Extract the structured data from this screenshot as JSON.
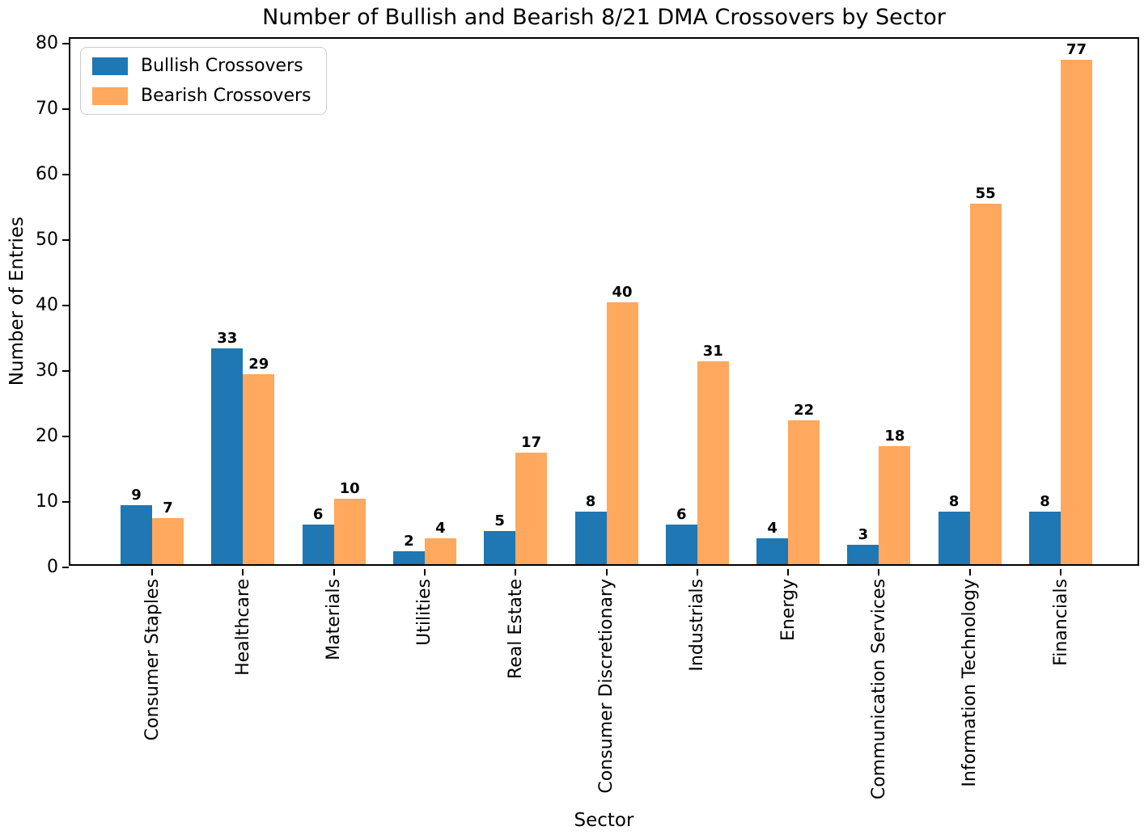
{
  "chart_data": {
    "type": "bar",
    "title": "Number of Bullish and Bearish 8/21 DMA Crossovers by Sector",
    "xlabel": "Sector",
    "ylabel": "Number of Entries",
    "categories": [
      "Consumer Staples",
      "Healthcare",
      "Materials",
      "Utilities",
      "Real Estate",
      "Consumer Discretionary",
      "Industrials",
      "Energy",
      "Communication Services",
      "Information Technology",
      "Financials"
    ],
    "series": [
      {
        "name": "Bullish Crossovers",
        "color": "#1f77b4",
        "values": [
          9,
          33,
          6,
          2,
          5,
          8,
          6,
          4,
          3,
          8,
          8
        ]
      },
      {
        "name": "Bearish Crossovers",
        "color": "#ffa85e",
        "values": [
          7,
          29,
          10,
          4,
          17,
          40,
          31,
          22,
          18,
          55,
          77
        ]
      }
    ],
    "ylim": [
      0,
      80
    ],
    "yticks": [
      0,
      10,
      20,
      30,
      40,
      50,
      60,
      70,
      80
    ],
    "xtick_rotation": 90,
    "legend_position": "upper left",
    "grid": false,
    "bar_value_labels": true,
    "colors": {
      "bullish": "#1f77b4",
      "bearish": "#ffa85e",
      "text": "#000000",
      "spine": "#000000"
    }
  }
}
